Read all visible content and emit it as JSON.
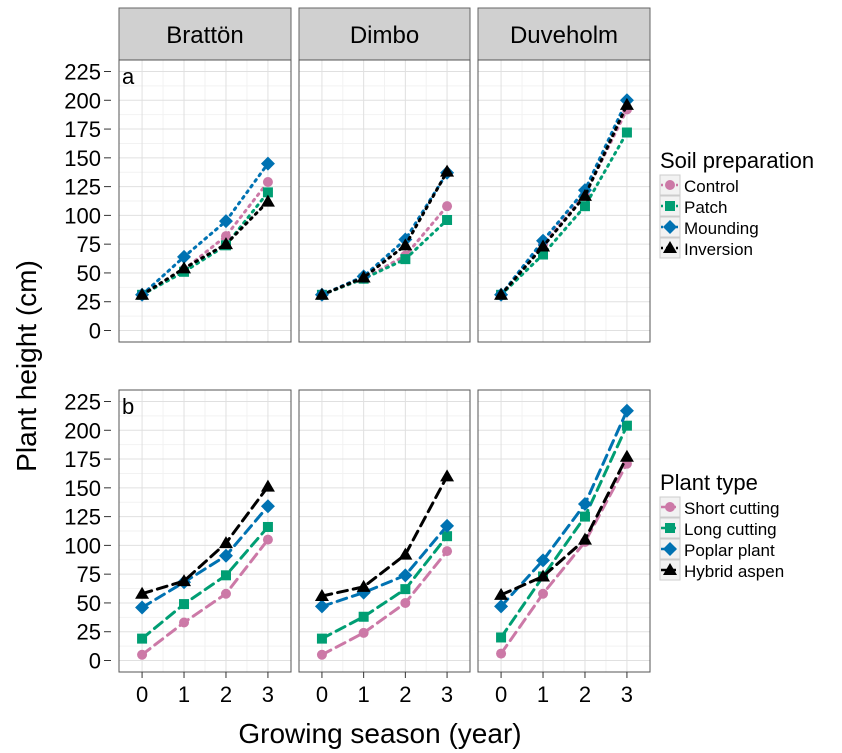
{
  "chart_data": {
    "type": "line",
    "xlabel": "Growing season (year)",
    "ylabel": "Plant height (cm)",
    "x": [
      0,
      1,
      2,
      3
    ],
    "xticks": [
      "0",
      "1",
      "2",
      "3"
    ],
    "yticks": [
      "0",
      "25",
      "50",
      "75",
      "100",
      "125",
      "150",
      "175",
      "200",
      "225"
    ],
    "ylim": [
      -10,
      235
    ],
    "xlim": [
      -0.55,
      3.55
    ],
    "grid": true,
    "facet_columns": [
      "Brattön",
      "Dimbo",
      "Duveholm"
    ],
    "legend_placement": "right",
    "series_colors": [
      "#cc79a7",
      "#009e73",
      "#0072b2",
      "#000000"
    ],
    "rows": [
      {
        "panel_label": "a",
        "legend_title": "Soil preparation",
        "legend_labels": [
          "Control",
          "Patch",
          "Mounding",
          "Inversion"
        ],
        "line_style": "dotted",
        "panels": [
          [
            [
              31,
              53,
              82,
              129
            ],
            [
              31,
              51,
              74,
              120
            ],
            [
              31,
              64,
              95,
              145
            ],
            [
              31,
              54,
              75,
              112
            ]
          ],
          [
            [
              31,
              45,
              65,
              108
            ],
            [
              31,
              45,
              62,
              96
            ],
            [
              31,
              47,
              79,
              137
            ],
            [
              31,
              46,
              74,
              138
            ]
          ],
          [
            [
              31,
              75,
              118,
              192
            ],
            [
              31,
              66,
              108,
              172
            ],
            [
              31,
              78,
              122,
              200
            ],
            [
              31,
              73,
              117,
              196
            ]
          ]
        ]
      },
      {
        "panel_label": "b",
        "legend_title": "Plant type",
        "legend_labels": [
          "Short cutting",
          "Long cutting",
          "Poplar plant",
          "Hybrid aspen"
        ],
        "line_style": "dashed",
        "panels": [
          [
            [
              5,
              33,
              58,
              105
            ],
            [
              19,
              49,
              74,
              116
            ],
            [
              46,
              68,
              91,
              134
            ],
            [
              58,
              69,
              102,
              151
            ]
          ],
          [
            [
              5,
              24,
              50,
              95
            ],
            [
              19,
              38,
              62,
              108
            ],
            [
              47,
              59,
              74,
              117
            ],
            [
              56,
              64,
              92,
              160
            ]
          ],
          [
            [
              6,
              58,
              103,
              171
            ],
            [
              20,
              73,
              125,
              204
            ],
            [
              47,
              87,
              136,
              217
            ],
            [
              57,
              73,
              105,
              177
            ]
          ]
        ]
      }
    ]
  }
}
